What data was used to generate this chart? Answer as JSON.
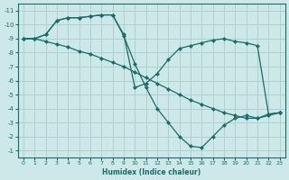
{
  "xlabel": "Humidex (Indice chaleur)",
  "bg_color": "#cce8e8",
  "grid_color": "#b0d0d0",
  "line_color": "#1a6b6b",
  "marker_size": 2.5,
  "xlim": [
    -0.5,
    23.5
  ],
  "ylim_bottom": -11.5,
  "ylim_top": -0.5,
  "xticks": [
    0,
    1,
    2,
    3,
    4,
    5,
    6,
    7,
    8,
    9,
    10,
    11,
    12,
    13,
    14,
    15,
    16,
    17,
    18,
    19,
    20,
    21,
    22,
    23
  ],
  "yticks": [
    -1,
    -2,
    -3,
    -4,
    -5,
    -6,
    -7,
    -8,
    -9,
    -10,
    -11
  ],
  "line1_x": [
    0,
    1,
    2,
    3,
    4,
    5,
    6,
    7,
    8,
    9,
    10,
    11,
    12,
    13,
    14,
    15,
    16,
    17,
    18,
    19,
    20,
    21,
    22,
    23
  ],
  "line1_y": [
    -9,
    -9,
    -9.3,
    -10.3,
    -10.5,
    -10.5,
    -10.6,
    -10.7,
    -10.7,
    -9.2,
    -7.2,
    -5.5,
    -4.0,
    -3.0,
    -2.0,
    -1.3,
    -1.2,
    -2.0,
    -2.8,
    -3.3,
    -3.5,
    -3.3,
    -3.6,
    -3.7
  ],
  "line2_x": [
    0,
    1,
    2,
    3,
    4,
    5,
    6,
    7,
    8,
    9,
    10,
    11,
    12,
    13,
    14,
    15,
    16,
    17,
    18,
    19,
    20,
    21,
    22,
    23
  ],
  "line2_y": [
    -9,
    -9,
    -8.8,
    -8.6,
    -8.4,
    -8.1,
    -7.9,
    -7.6,
    -7.3,
    -7.0,
    -6.6,
    -6.2,
    -5.8,
    -5.4,
    -5.0,
    -4.6,
    -4.3,
    -4.0,
    -3.7,
    -3.5,
    -3.3,
    -3.3,
    -3.5,
    -3.7
  ],
  "line3_x": [
    0,
    1,
    2,
    3,
    4,
    5,
    6,
    7,
    8,
    9,
    10,
    11,
    12,
    13,
    14,
    15,
    16,
    17,
    18,
    19,
    20,
    21,
    22,
    23
  ],
  "line3_y": [
    -9,
    -9,
    -9.3,
    -10.3,
    -10.5,
    -10.5,
    -10.6,
    -10.7,
    -10.7,
    -9.3,
    -5.5,
    -5.8,
    -6.5,
    -7.5,
    -8.3,
    -8.5,
    -8.7,
    -8.9,
    -9.0,
    -8.8,
    -8.7,
    -8.5,
    -3.6,
    -3.7
  ]
}
